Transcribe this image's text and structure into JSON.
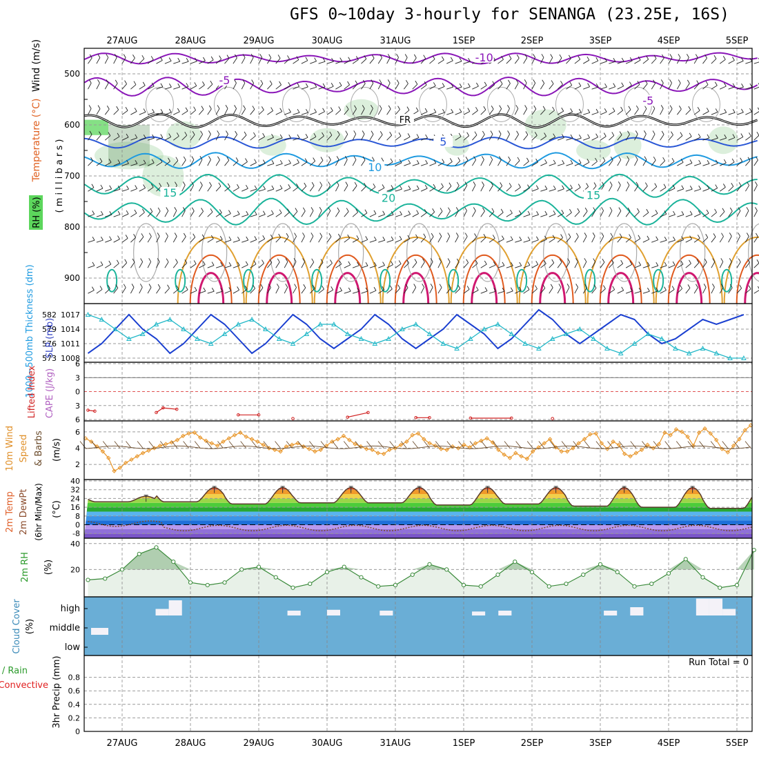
{
  "title": "GFS 0~10day 3-hourly for SENANGA (23.25E, 16S)",
  "dates": [
    "27AUG",
    "28AUG",
    "29AUG",
    "30AUG",
    "31AUG",
    "1SEP",
    "2SEP",
    "3SEP",
    "4SEP",
    "5SEP"
  ],
  "colors": {
    "rh_green": "#5cd65c",
    "temp_purple": "#8a16b8",
    "temp_blue": "#2a57d6",
    "temp_lightblue": "#1e9ae0",
    "temp_teal": "#1ab39a",
    "temp_orange": "#e0a030",
    "temp_red": "#e05a1e",
    "temp_magenta": "#d01870",
    "slp_line": "#1a3fd0",
    "thick_line": "#22b8c8",
    "wind_orange": "#e8962a",
    "cloud_blue": "#6aaed6"
  },
  "labels": {
    "p1_wind": "Wind (m/s)",
    "p1_temp": "Temperature (°C)",
    "p1_rh": "RH (%)",
    "p1_mb": "( m i l l i b a r s )",
    "p2_thick": "1000~500mb Thickness (dm)",
    "p2_slp": "SLP (mb)",
    "p3_li": "Lifted Index",
    "p3_cape": "CAPE (J/kg)",
    "p4_a": "10m Wind",
    "p4_b": "Speed",
    "p4_c": "& Barbs",
    "p4_unit": "(m/s)",
    "p5_a": "2m Temp",
    "p5_b": "2m DewPt",
    "p5_c": "(6hr Min/Max)",
    "p5_unit": "(°C)",
    "p6_a": "2m RH",
    "p6_unit": "(%)",
    "p7_a": "Cloud Cover",
    "p7_unit": "(%)",
    "p8_a": "Total / Rain",
    "p8_b": "Convective",
    "p8_unit": "3hr Precip (mm)",
    "run_total": "Run Total = 0",
    "freezing": "FR"
  },
  "chart_data": [
    {
      "panel": "upper-air",
      "type": "heatmap",
      "yaxis": "Pressure (millibars)",
      "yticks": [
        500,
        600,
        700,
        800,
        900
      ],
      "ylim": [
        450,
        950
      ],
      "isotherm_labels": [
        {
          "value": "-10",
          "level": 470,
          "time": 5.3
        },
        {
          "value": "-5",
          "level": 515,
          "time": 1.5
        },
        {
          "value": "-5",
          "level": 555,
          "time": 7.7
        },
        {
          "value": "5",
          "level": 635,
          "time": 4.7
        },
        {
          "value": "10",
          "level": 685,
          "time": 3.7
        },
        {
          "value": "20",
          "level": 745,
          "time": 3.9
        },
        {
          "value": "15",
          "level": 740,
          "time": 6.9
        },
        {
          "value": "15",
          "level": 735,
          "time": 0.7
        }
      ],
      "isotherms": [
        {
          "temp": -10,
          "base": 470,
          "amp": 8
        },
        {
          "temp": -5,
          "base": 525,
          "amp": 14
        },
        {
          "temp": 0,
          "base": 592,
          "amp": 10
        },
        {
          "temp": 5,
          "base": 635,
          "amp": 9
        },
        {
          "temp": 10,
          "base": 670,
          "amp": 12
        },
        {
          "temp": 15,
          "base": 720,
          "amp": 18
        },
        {
          "temp": 20,
          "base": 770,
          "amp": 20
        }
      ]
    },
    {
      "panel": "slp-thickness",
      "type": "line",
      "slp_ticks": [
        1008,
        1011,
        1014,
        1017
      ],
      "thickness_ticks": [
        573,
        576,
        579,
        582
      ],
      "x": [
        0.0,
        0.2,
        0.4,
        0.6,
        0.8,
        1.0,
        1.2,
        1.4,
        1.6,
        1.8,
        2.0,
        2.2,
        2.4,
        2.6,
        2.8,
        3.0,
        3.2,
        3.4,
        3.6,
        3.8,
        4.0,
        4.2,
        4.4,
        4.6,
        4.8,
        5.0,
        5.2,
        5.4,
        5.6,
        5.8,
        6.0,
        6.2,
        6.4,
        6.6,
        6.8,
        7.0,
        7.2,
        7.4,
        7.6,
        7.8,
        8.0,
        8.2,
        8.4,
        8.6,
        8.8,
        9.0,
        9.2,
        9.4,
        9.6
      ],
      "series": [
        {
          "name": "SLP (mb)",
          "values": [
            1009,
            1011,
            1014,
            1017,
            1014,
            1012,
            1009,
            1011,
            1014,
            1017,
            1015,
            1012,
            1009,
            1011,
            1014,
            1017,
            1015,
            1012,
            1010,
            1012,
            1014,
            1017,
            1015,
            1012,
            1010,
            1012,
            1014,
            1017,
            1015,
            1013,
            1010,
            1012,
            1015,
            1018,
            1016,
            1013,
            1011,
            1013,
            1015,
            1017,
            1016,
            1013,
            1011,
            1012,
            1014,
            1016,
            1015,
            1016,
            1017
          ]
        },
        {
          "name": "Thickness (dm)",
          "values": [
            582,
            581,
            579,
            577,
            578,
            580,
            581,
            579,
            577,
            576,
            578,
            580,
            581,
            579,
            577,
            576,
            578,
            580,
            580,
            578,
            577,
            576,
            577,
            579,
            580,
            578,
            576,
            575,
            577,
            579,
            580,
            578,
            576,
            575,
            577,
            578,
            579,
            577,
            575,
            574,
            576,
            578,
            577,
            575,
            574,
            575,
            574,
            573,
            573
          ]
        }
      ]
    },
    {
      "panel": "lifted-index",
      "type": "line",
      "yticks": [
        -6,
        -3,
        0,
        3,
        6
      ],
      "x": [
        0.0,
        0.1,
        0.2,
        0.5,
        0.8,
        1.0,
        1.1,
        1.3,
        1.5,
        1.9,
        2.2,
        2.5,
        2.8,
        3.0,
        3.4,
        3.6,
        3.8,
        4.1,
        4.3,
        4.5,
        4.8,
        5.0,
        5.2,
        5.6,
        6.2,
        6.5,
        6.8,
        7.0,
        7.5,
        8.0,
        8.5,
        9.0
      ],
      "series": [
        {
          "name": "Lifted Index",
          "values": [
            4.0,
            4.2,
            6,
            6,
            6,
            4.5,
            3.5,
            3.8,
            6,
            6,
            5.0,
            5.0,
            6,
            5.8,
            6,
            6,
            5.5,
            4.5,
            6,
            6,
            5.6,
            5.6,
            6,
            5.7,
            5.7,
            6,
            5.8,
            6,
            6,
            6,
            6,
            6
          ]
        }
      ]
    },
    {
      "panel": "wind-10m",
      "type": "line",
      "yticks": [
        2,
        4,
        6
      ],
      "series": [
        {
          "name": "10m Wind Speed (m/s)",
          "values": [
            5.2,
            4.8,
            4.2,
            3.6,
            2.8,
            1.2,
            1.6,
            2.2,
            2.6,
            3.0,
            3.4,
            3.7,
            4.0,
            4.3,
            4.5,
            4.7,
            5.0,
            5.5,
            5.8,
            5.9,
            5.3,
            4.9,
            4.6,
            4.3,
            4.8,
            5.2,
            5.6,
            5.9,
            5.4,
            5.1,
            4.8,
            4.4,
            4.0,
            3.8,
            3.6,
            4.2,
            4.4,
            4.6,
            4.2,
            3.9,
            3.6,
            3.8,
            4.3,
            4.8,
            5.1,
            5.5,
            5.0,
            4.5,
            4.2,
            3.9,
            3.8,
            3.4,
            3.3,
            3.8,
            4.0,
            4.4,
            4.8,
            5.6,
            5.8,
            5.1,
            4.6,
            4.3,
            3.9,
            3.8,
            4.2,
            4.0,
            4.4,
            4.1,
            4.6,
            4.9,
            5.2,
            4.7,
            3.8,
            3.2,
            2.8,
            3.4,
            3.0,
            2.7,
            3.6,
            4.1,
            4.6,
            5.1,
            4.1,
            3.6,
            3.6,
            4.0,
            4.6,
            5.1,
            5.7,
            5.8,
            4.6,
            3.9,
            4.8,
            4.4,
            3.3,
            3.0,
            3.4,
            3.8,
            4.4,
            4.0,
            4.5,
            5.9,
            5.6,
            6.3,
            6.0,
            5.4,
            4.3,
            5.9,
            6.4,
            5.8,
            5.0,
            3.9,
            3.5,
            4.3,
            5.1,
            6.2,
            6.8
          ]
        }
      ]
    },
    {
      "panel": "temp-dewpoint",
      "type": "line",
      "yticks": [
        -8,
        0,
        8,
        16,
        24,
        32,
        40
      ],
      "series": [
        {
          "name": "2m Temp daily max (°C)",
          "values": [
            26,
            34,
            34,
            34,
            34,
            34,
            34,
            34,
            34,
            33
          ]
        },
        {
          "name": "2m Temp daily min (°C)",
          "values": [
            21,
            21,
            19,
            20,
            20,
            18,
            19,
            17,
            16,
            15
          ]
        }
      ]
    },
    {
      "panel": "rh-2m",
      "type": "line",
      "yticks": [
        20,
        40
      ],
      "x": [
        0,
        0.25,
        0.5,
        0.75,
        1,
        1.25,
        1.5,
        1.75,
        2,
        2.25,
        2.5,
        2.75,
        3,
        3.25,
        3.5,
        3.75,
        4,
        4.25,
        4.5,
        4.75,
        5,
        5.25,
        5.5,
        5.75,
        6,
        6.25,
        6.5,
        6.75,
        7,
        7.25,
        7.5,
        7.75,
        8,
        8.25,
        8.5,
        8.75,
        9,
        9.25,
        9.5,
        9.75
      ],
      "series": [
        {
          "name": "2m RH (%)",
          "values": [
            12,
            13,
            20,
            32,
            37,
            26,
            10,
            8,
            10,
            20,
            22,
            14,
            6,
            9,
            18,
            22,
            14,
            7,
            8,
            16,
            24,
            20,
            8,
            7,
            16,
            26,
            18,
            7,
            9,
            16,
            24,
            18,
            7,
            9,
            17,
            28,
            14,
            6,
            8,
            35
          ]
        }
      ]
    },
    {
      "panel": "cloud-cover",
      "type": "bar",
      "ytick_labels": [
        "high",
        "middle",
        "low"
      ],
      "series": [
        {
          "name": "high cloud",
          "values": [
            0,
            0,
            0,
            0,
            0,
            30,
            80,
            0,
            0,
            0,
            0,
            0,
            0,
            0,
            0,
            20,
            0,
            0,
            25,
            0,
            0,
            0,
            20,
            0,
            0,
            0,
            0,
            0,
            0,
            15,
            0,
            20,
            0,
            0,
            0,
            0,
            0,
            0,
            0,
            20,
            0,
            40,
            0,
            0,
            0,
            0,
            90,
            90,
            30,
            0,
            0,
            0,
            0
          ]
        },
        {
          "name": "middle cloud",
          "values": [
            10,
            20,
            0,
            0,
            0,
            0,
            0,
            0,
            0,
            0
          ]
        }
      ]
    },
    {
      "panel": "precip",
      "type": "bar",
      "yticks": [
        0,
        0.2,
        0.4,
        0.6,
        0.8
      ],
      "ylim": [
        0,
        1.0
      ],
      "series": [
        {
          "name": "3hr Precip (mm)",
          "values": [
            0,
            0,
            0,
            0,
            0,
            0,
            0,
            0,
            0,
            0
          ]
        }
      ]
    }
  ]
}
